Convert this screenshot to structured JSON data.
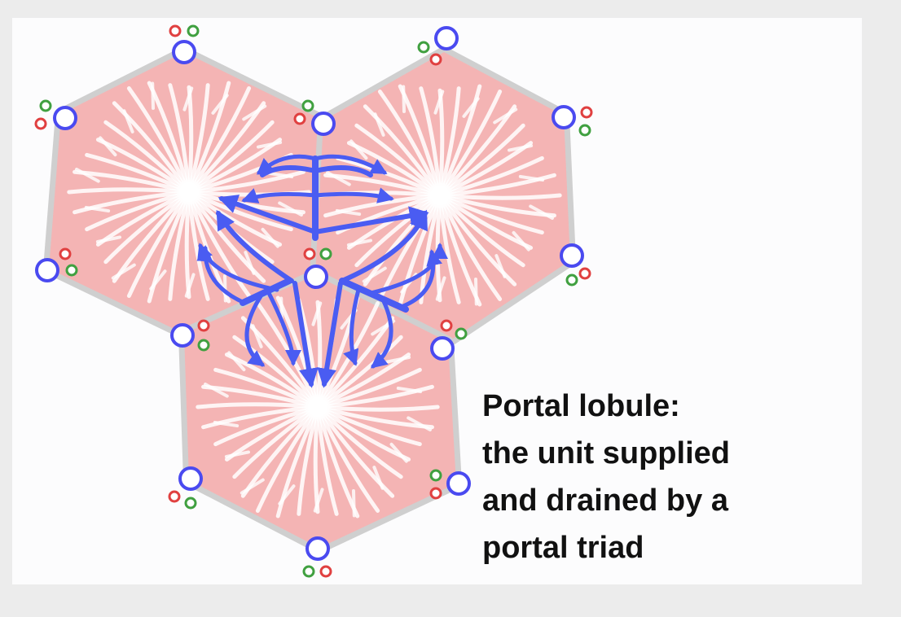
{
  "caption": {
    "lines": [
      "Portal lobule:",
      "the unit supplied",
      "and drained by a",
      "portal triad"
    ]
  },
  "colors": {
    "background": "#ececec",
    "panel": "#fcfcfd",
    "lobule_fill": "#f4b4b4",
    "lobule_border": "#cfcfcf",
    "sinusoid": "#ffffff",
    "central_vein": "#ffffff",
    "portal_vein": "#4a4af0",
    "hepatic_artery": "#e04040",
    "bile_duct": "#40a040",
    "flow_arrow": "#4a5cf2",
    "text": "#111111"
  },
  "icons": {
    "portal_vein": "blue-ring-icon",
    "hepatic_artery": "red-ring-icon",
    "bile_duct": "green-ring-icon",
    "flow": "arrow-icon"
  }
}
